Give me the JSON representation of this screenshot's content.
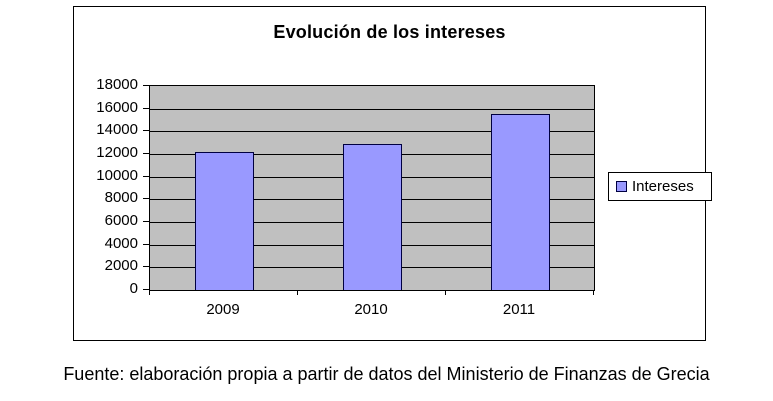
{
  "chart_data": {
    "type": "bar",
    "title": "Evolución de los intereses",
    "categories": [
      "2009",
      "2010",
      "2011"
    ],
    "values": [
      12200,
      12900,
      15500
    ],
    "series_name": "Intereses",
    "legend_entries": [
      "Intereses"
    ],
    "legend_position": "right",
    "xlabel": "",
    "ylabel": "",
    "ylim": [
      0,
      18000
    ],
    "ytick_step": 2000,
    "yticks": [
      0,
      2000,
      4000,
      6000,
      8000,
      10000,
      12000,
      14000,
      16000,
      18000
    ],
    "grid": true,
    "colors": {
      "bar_fill": "#9999ff",
      "bar_border": "#000040",
      "plot_bg": "#c0c0c0",
      "gridline": "#000000",
      "chart_border": "#000000",
      "background": "#ffffff"
    }
  },
  "caption": "Fuente: elaboración propia a partir de datos del Ministerio de Finanzas de Grecia"
}
